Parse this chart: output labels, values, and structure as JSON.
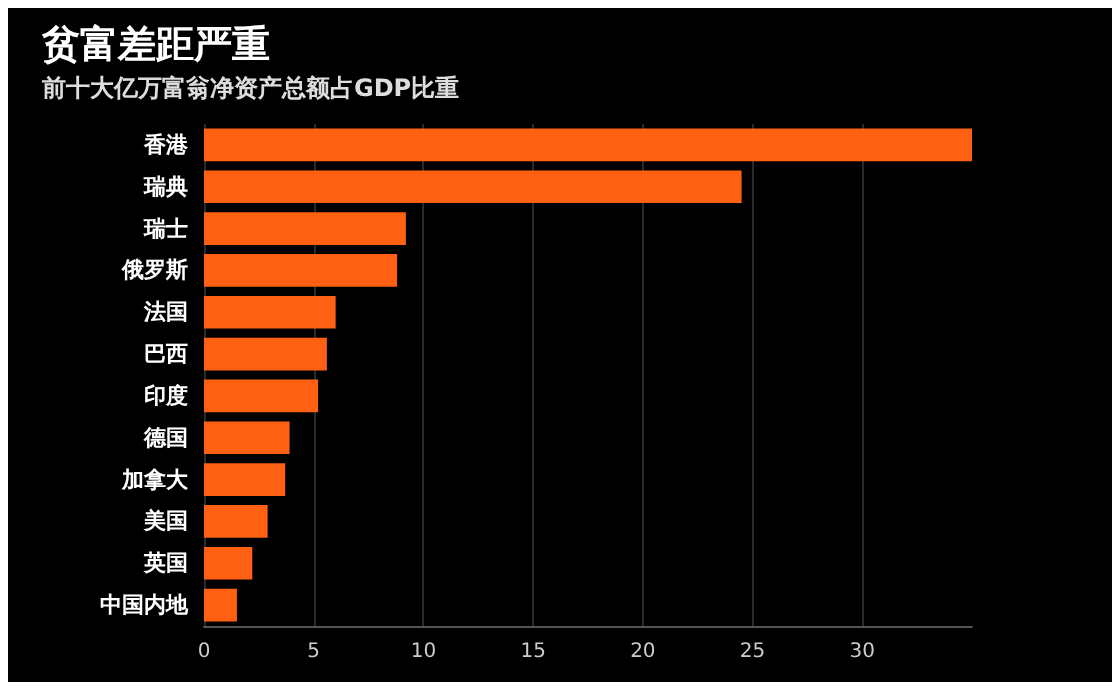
{
  "chart_data": {
    "type": "bar",
    "orientation": "horizontal",
    "title": "贫富差距严重",
    "subtitle": "前十大亿万富翁净资产总额占GDP比重",
    "categories": [
      "香港",
      "瑞典",
      "瑞士",
      "俄罗斯",
      "法国",
      "巴西",
      "印度",
      "德国",
      "加拿大",
      "美国",
      "英国",
      "中国内地"
    ],
    "values": [
      35.0,
      24.5,
      9.2,
      8.8,
      6.0,
      5.6,
      5.2,
      3.9,
      3.7,
      2.9,
      2.2,
      1.5
    ],
    "color": "#ff6011",
    "xlim": [
      0,
      35
    ],
    "xticks": [
      0,
      5,
      10,
      15,
      20,
      25,
      30
    ],
    "grid": "x"
  }
}
